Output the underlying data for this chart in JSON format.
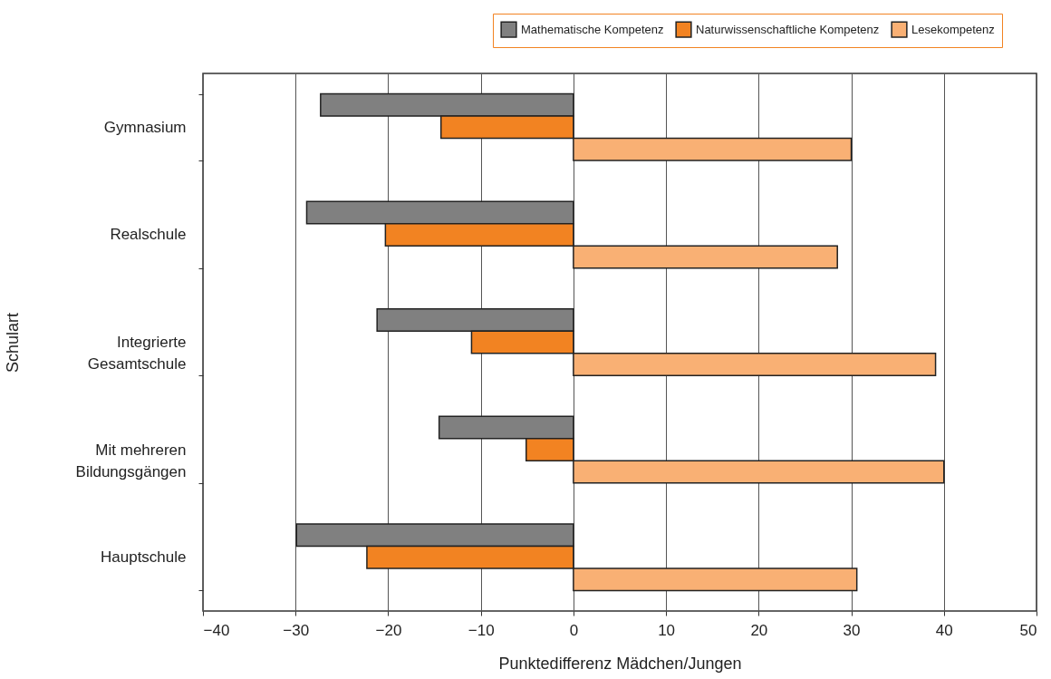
{
  "chart_data": {
    "type": "bar",
    "orientation": "horizontal",
    "xlabel": "Punktedifferenz Mädchen/Jungen",
    "ylabel": "Schulart",
    "categories": [
      "Gymnasium",
      "Realschule",
      "Integrierte Gesamtschule",
      "Mit mehreren Bildungsgängen",
      "Hauptschule"
    ],
    "series": [
      {
        "name": "Mathematische Kompetenz",
        "color": "#808080",
        "values": [
          -27.3,
          -28.8,
          -21.2,
          -14.5,
          -29.9
        ]
      },
      {
        "name": "Naturwissenschaftliche Kompetenz",
        "color": "#f28322",
        "values": [
          -14.3,
          -20.3,
          -11.0,
          -5.1,
          -22.3
        ]
      },
      {
        "name": "Lesekompetenz",
        "color": "#f9b074",
        "values": [
          30.0,
          28.5,
          39.1,
          40.0,
          30.6
        ]
      }
    ],
    "xlim": [
      -40,
      50
    ],
    "xticks": [
      -40,
      -30,
      -20,
      -10,
      0,
      10,
      20,
      30,
      40,
      50
    ],
    "grid": "x",
    "legend": "top right"
  }
}
